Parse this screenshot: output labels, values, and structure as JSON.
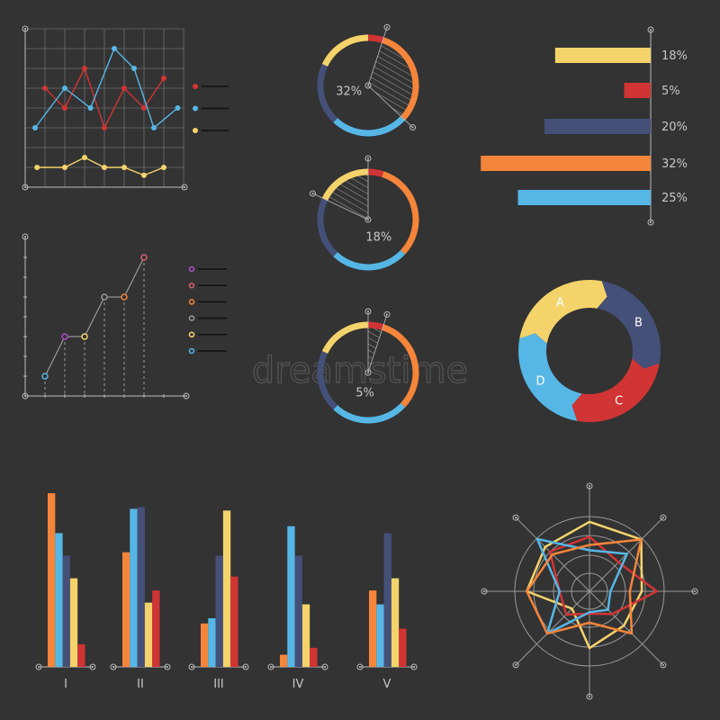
{
  "colors": {
    "background": "#333333",
    "orange": "#f5853a",
    "blue": "#56b7e6",
    "navy": "#455079",
    "yellow": "#f5d36b",
    "red": "#d13434",
    "purple": "#b04fc9",
    "pink": "#d9607a",
    "gray": "#9a9a9a",
    "grid": "#6e6e6e",
    "axis": "#bbbbbb"
  },
  "watermark": "dreamstime",
  "chart_data": [
    {
      "type": "line",
      "grid": true,
      "legend": "right",
      "series": [
        {
          "color": "#d13434",
          "x": [
            1,
            2,
            3,
            4,
            5,
            6,
            7
          ],
          "y": [
            5,
            4,
            6,
            3,
            5,
            4,
            5.5
          ]
        },
        {
          "color": "#56b7e6",
          "x": [
            0.5,
            2,
            3.3,
            4.5,
            5.5,
            6.5,
            7.7
          ],
          "y": [
            3,
            5,
            4,
            7,
            6,
            3,
            4
          ]
        },
        {
          "color": "#f5d36b",
          "x": [
            0.6,
            2,
            3,
            4,
            5,
            6,
            7
          ],
          "y": [
            1,
            1,
            1.5,
            1,
            1,
            0.6,
            1
          ]
        }
      ],
      "xlim": [
        0,
        8
      ],
      "ylim": [
        0,
        8
      ]
    },
    {
      "type": "line",
      "grid": false,
      "legend": "right",
      "x": [
        1,
        2,
        3,
        4,
        5,
        6
      ],
      "y": [
        1,
        3,
        3,
        5,
        5,
        7
      ],
      "point_colors": [
        "#56b7e6",
        "#b04fc9",
        "#f5d36b",
        "#9a9a9a",
        "#f5853a",
        "#d9607a"
      ],
      "legend_colors": [
        "#b04fc9",
        "#d9607a",
        "#f5853a",
        "#9a9a9a",
        "#f5d36b",
        "#56b7e6"
      ],
      "xlim": [
        0,
        8
      ],
      "ylim": [
        0,
        8
      ]
    },
    {
      "type": "pie",
      "style": "donut",
      "slices": [
        {
          "value": 5,
          "color": "#d13434"
        },
        {
          "value": 32,
          "color": "#f5853a"
        },
        {
          "value": 25,
          "color": "#56b7e6"
        },
        {
          "value": 20,
          "color": "#455079"
        },
        {
          "value": 18,
          "color": "#f5d36b"
        }
      ],
      "highlights": [
        {
          "slice": 1,
          "label": "32%"
        },
        {
          "slice": 4,
          "label": "18%"
        },
        {
          "slice": 0,
          "label": "5%"
        }
      ]
    },
    {
      "type": "bar",
      "orientation": "horizontal",
      "values": [
        18,
        5,
        20,
        32,
        25
      ],
      "labels": [
        "18%",
        "5%",
        "20%",
        "32%",
        "25%"
      ],
      "colors": [
        "#f5d36b",
        "#d13434",
        "#455079",
        "#f5853a",
        "#56b7e6"
      ]
    },
    {
      "type": "pie",
      "style": "segmented-ring",
      "slices": [
        {
          "label": "A",
          "value": 25,
          "color": "#f5d36b"
        },
        {
          "label": "B",
          "value": 25,
          "color": "#455079"
        },
        {
          "label": "C",
          "value": 25,
          "color": "#d13434"
        },
        {
          "label": "D",
          "value": 25,
          "color": "#56b7e6"
        }
      ]
    },
    {
      "type": "bar",
      "categories": [
        "I",
        "II",
        "III",
        "IV",
        "V"
      ],
      "series": [
        {
          "color": "#f5853a",
          "values": [
            100,
            66,
            25,
            7,
            44
          ]
        },
        {
          "color": "#56b7e6",
          "values": [
            77,
            91,
            28,
            81,
            36
          ]
        },
        {
          "color": "#455079",
          "values": [
            64,
            92,
            64,
            64,
            77
          ]
        },
        {
          "color": "#f5d36b",
          "values": [
            51,
            37,
            90,
            36,
            51
          ]
        },
        {
          "color": "#d13434",
          "values": [
            13,
            44,
            52,
            11,
            22
          ]
        }
      ],
      "ylim": [
        0,
        100
      ]
    },
    {
      "type": "radar",
      "axes_count": 8,
      "rings": 4,
      "rlim": [
        0,
        100
      ],
      "series": [
        {
          "color": "#f5d36b",
          "values": [
            93,
            98,
            70,
            65,
            76,
            33,
            84,
            84
          ]
        },
        {
          "color": "#d13434",
          "values": [
            73,
            55,
            90,
            43,
            30,
            44,
            40,
            75
          ]
        },
        {
          "color": "#56b7e6",
          "values": [
            55,
            71,
            28,
            35,
            28,
            80,
            40,
            99
          ]
        },
        {
          "color": "#f5853a",
          "values": [
            62,
            98,
            54,
            80,
            42,
            80,
            84,
            70
          ]
        }
      ]
    }
  ]
}
